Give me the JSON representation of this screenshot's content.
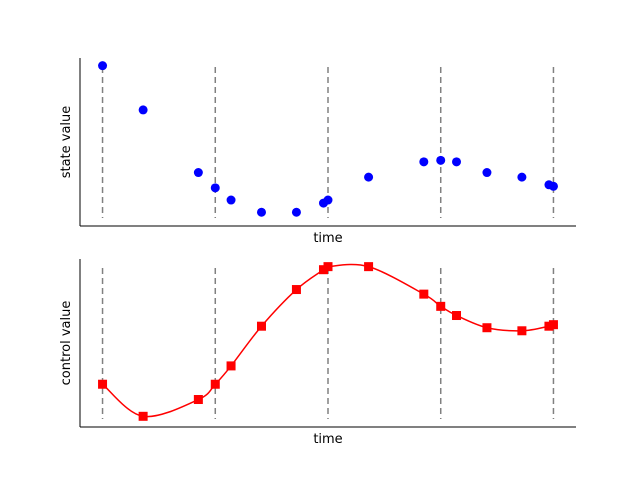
{
  "chart_data": [
    {
      "type": "scatter",
      "xlabel": "time",
      "ylabel": "state value",
      "xlim": [
        -0.1,
        2.1
      ],
      "ylim": [
        -0.05,
        1.05
      ],
      "grid": false,
      "vlines": [
        0.0,
        0.5,
        1.0,
        1.5,
        2.0
      ],
      "series": [
        {
          "color": "#0000ff",
          "marker": "circle",
          "x": [
            0.0,
            0.18,
            0.425,
            0.5,
            0.57,
            0.705,
            0.86,
            0.98,
            1.0,
            1.18,
            1.425,
            1.5,
            1.57,
            1.705,
            1.86,
            1.98,
            2.0
          ],
          "y": [
            1.0,
            0.71,
            0.3,
            0.2,
            0.12,
            0.04,
            0.04,
            0.1,
            0.12,
            0.27,
            0.37,
            0.38,
            0.37,
            0.3,
            0.27,
            0.22,
            0.21
          ]
        }
      ]
    },
    {
      "type": "line",
      "xlabel": "time",
      "ylabel": "control value",
      "xlim": [
        -0.1,
        2.1
      ],
      "ylim": [
        -0.05,
        1.05
      ],
      "grid": false,
      "vlines": [
        0.0,
        0.5,
        1.0,
        1.5,
        2.0
      ],
      "series": [
        {
          "color": "#ff0000",
          "marker": "square",
          "x": [
            0.0,
            0.18,
            0.425,
            0.5,
            0.57,
            0.705,
            0.86,
            0.98,
            1.0,
            1.18,
            1.425,
            1.5,
            1.57,
            1.705,
            1.86,
            1.98,
            2.0
          ],
          "y": [
            0.23,
            0.02,
            0.13,
            0.23,
            0.35,
            0.61,
            0.85,
            0.98,
            1.0,
            1.0,
            0.82,
            0.74,
            0.68,
            0.6,
            0.58,
            0.61,
            0.62
          ]
        }
      ]
    }
  ]
}
